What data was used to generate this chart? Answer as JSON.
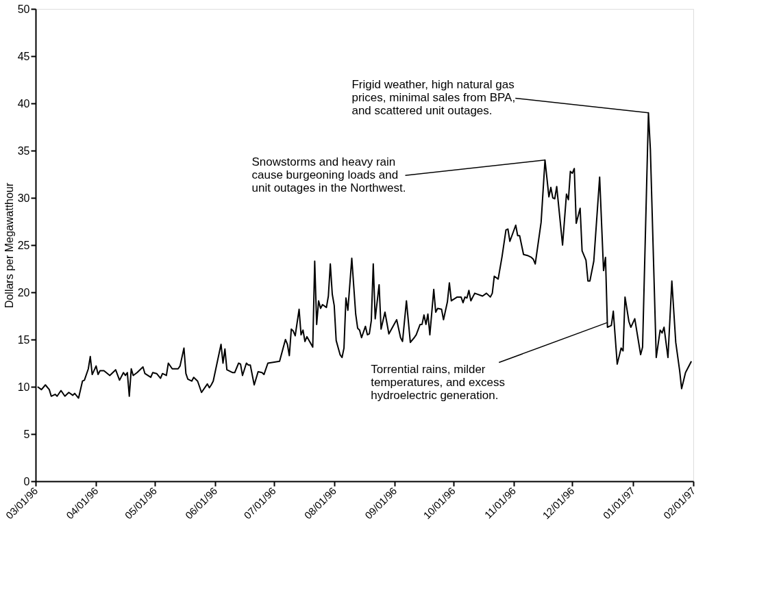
{
  "chart_data": {
    "type": "line",
    "ylabel": "Dollars per Megawatthour",
    "grid": false,
    "xlim": [
      "1996-03-01",
      "1997-02-01"
    ],
    "ylim": [
      0,
      50
    ],
    "yticks": [
      0,
      5,
      10,
      15,
      20,
      25,
      30,
      35,
      40,
      45,
      50
    ],
    "xticks": [
      {
        "value": "1996-03-01",
        "label": "03/01/96"
      },
      {
        "value": "1996-04-01",
        "label": "04/01/96"
      },
      {
        "value": "1996-05-01",
        "label": "05/01/96"
      },
      {
        "value": "1996-06-01",
        "label": "06/01/96"
      },
      {
        "value": "1996-07-01",
        "label": "07/01/96"
      },
      {
        "value": "1996-08-01",
        "label": "08/01/96"
      },
      {
        "value": "1996-09-01",
        "label": "09/01/96"
      },
      {
        "value": "1996-10-01",
        "label": "10/01/96"
      },
      {
        "value": "1996-11-01",
        "label": "11/01/96"
      },
      {
        "value": "1996-12-01",
        "label": "12/01/96"
      },
      {
        "value": "1997-01-01",
        "label": "01/01/97"
      },
      {
        "value": "1997-02-01",
        "label": "02/01/97"
      }
    ],
    "series": [
      {
        "color": "#000000",
        "x": [
          "1996-03-02",
          "1996-03-04",
          "1996-03-06",
          "1996-03-08",
          "1996-03-09",
          "1996-03-11",
          "1996-03-12",
          "1996-03-14",
          "1996-03-16",
          "1996-03-18",
          "1996-03-20",
          "1996-03-21",
          "1996-03-23",
          "1996-03-25",
          "1996-03-26",
          "1996-03-28",
          "1996-03-29",
          "1996-03-30",
          "1996-04-01",
          "1996-04-02",
          "1996-04-03",
          "1996-04-05",
          "1996-04-08",
          "1996-04-11",
          "1996-04-13",
          "1996-04-15",
          "1996-04-16",
          "1996-04-17",
          "1996-04-18",
          "1996-04-19",
          "1996-04-20",
          "1996-04-22",
          "1996-04-25",
          "1996-04-26",
          "1996-04-29",
          "1996-04-30",
          "1996-05-02",
          "1996-05-04",
          "1996-05-05",
          "1996-05-07",
          "1996-05-08",
          "1996-05-10",
          "1996-05-13",
          "1996-05-14",
          "1996-05-16",
          "1996-05-17",
          "1996-05-18",
          "1996-05-20",
          "1996-05-21",
          "1996-05-23",
          "1996-05-25",
          "1996-05-28",
          "1996-05-29",
          "1996-05-30",
          "1996-05-31",
          "1996-06-04",
          "1996-06-05",
          "1996-06-06",
          "1996-06-07",
          "1996-06-10",
          "1996-06-11",
          "1996-06-13",
          "1996-06-14",
          "1996-06-15",
          "1996-06-17",
          "1996-06-18",
          "1996-06-19",
          "1996-06-21",
          "1996-06-23",
          "1996-06-25",
          "1996-06-26",
          "1996-06-28",
          "1996-07-04",
          "1996-07-07",
          "1996-07-08",
          "1996-07-09",
          "1996-07-10",
          "1996-07-11",
          "1996-07-12",
          "1996-07-14",
          "1996-07-15",
          "1996-07-16",
          "1996-07-17",
          "1996-07-18",
          "1996-07-21",
          "1996-07-22",
          "1996-07-23",
          "1996-07-24",
          "1996-07-25",
          "1996-07-26",
          "1996-07-28",
          "1996-07-29",
          "1996-07-30",
          "1996-07-31",
          "1996-08-01",
          "1996-08-02",
          "1996-08-04",
          "1996-08-05",
          "1996-08-06",
          "1996-08-07",
          "1996-08-08",
          "1996-08-10",
          "1996-08-12",
          "1996-08-13",
          "1996-08-14",
          "1996-08-15",
          "1996-08-17",
          "1996-08-18",
          "1996-08-19",
          "1996-08-20",
          "1996-08-21",
          "1996-08-22",
          "1996-08-24",
          "1996-08-25",
          "1996-08-27",
          "1996-08-29",
          "1996-09-02",
          "1996-09-04",
          "1996-09-05",
          "1996-09-07",
          "1996-09-09",
          "1996-09-11",
          "1996-09-12",
          "1996-09-14",
          "1996-09-15",
          "1996-09-16",
          "1996-09-17",
          "1996-09-18",
          "1996-09-19",
          "1996-09-21",
          "1996-09-22",
          "1996-09-23",
          "1996-09-25",
          "1996-09-26",
          "1996-09-28",
          "1996-09-29",
          "1996-09-30",
          "1996-10-03",
          "1996-10-05",
          "1996-10-06",
          "1996-10-07",
          "1996-10-08",
          "1996-10-09",
          "1996-10-10",
          "1996-10-11",
          "1996-10-12",
          "1996-10-16",
          "1996-10-18",
          "1996-10-20",
          "1996-10-21",
          "1996-10-22",
          "1996-10-24",
          "1996-10-26",
          "1996-10-28",
          "1996-10-29",
          "1996-10-30",
          "1996-11-02",
          "1996-11-03",
          "1996-11-04",
          "1996-11-06",
          "1996-11-08",
          "1996-11-10",
          "1996-11-11",
          "1996-11-12",
          "1996-11-15",
          "1996-11-17",
          "1996-11-19",
          "1996-11-20",
          "1996-11-21",
          "1996-11-22",
          "1996-11-23",
          "1996-11-26",
          "1996-11-28",
          "1996-11-29",
          "1996-11-30",
          "1996-12-01",
          "1996-12-02",
          "1996-12-03",
          "1996-12-05",
          "1996-12-06",
          "1996-12-08",
          "1996-12-09",
          "1996-12-10",
          "1996-12-12",
          "1996-12-15",
          "1996-12-17",
          "1996-12-18",
          "1996-12-19",
          "1996-12-21",
          "1996-12-22",
          "1996-12-24",
          "1996-12-26",
          "1996-12-27",
          "1996-12-28",
          "1996-12-30",
          "1996-12-31",
          "1997-01-02",
          "1997-01-05",
          "1997-01-06",
          "1997-01-09",
          "1997-01-10",
          "1997-01-13",
          "1997-01-15",
          "1997-01-16",
          "1997-01-17",
          "1997-01-19",
          "1997-01-21",
          "1997-01-23",
          "1997-01-24",
          "1997-01-25",
          "1997-01-26",
          "1997-01-28",
          "1997-01-31"
        ],
        "values": [
          10.0,
          9.7,
          10.2,
          9.7,
          9.0,
          9.2,
          9.0,
          9.6,
          9.0,
          9.4,
          9.1,
          9.3,
          8.8,
          10.6,
          10.7,
          11.9,
          13.2,
          11.3,
          12.2,
          11.3,
          11.7,
          11.7,
          11.2,
          11.8,
          10.7,
          11.5,
          11.2,
          11.5,
          9.0,
          11.9,
          11.2,
          11.5,
          12.1,
          11.4,
          11.0,
          11.5,
          11.4,
          10.9,
          11.4,
          11.2,
          12.5,
          11.9,
          11.9,
          12.2,
          14.1,
          11.4,
          10.8,
          10.6,
          11.0,
          10.6,
          9.4,
          10.3,
          9.9,
          10.2,
          10.6,
          14.5,
          12.5,
          14.0,
          11.8,
          11.5,
          11.5,
          12.5,
          12.4,
          11.2,
          12.5,
          12.3,
          12.3,
          10.2,
          11.6,
          11.5,
          11.3,
          12.5,
          12.7,
          15.0,
          14.5,
          13.3,
          16.1,
          15.9,
          15.4,
          18.2,
          15.5,
          16.0,
          14.8,
          15.3,
          14.2,
          23.3,
          16.6,
          19.1,
          18.3,
          18.7,
          18.4,
          19.6,
          23.0,
          19.8,
          18.6,
          14.9,
          13.4,
          13.1,
          14.1,
          19.4,
          18.1,
          23.6,
          17.7,
          16.2,
          16.0,
          15.2,
          16.4,
          15.5,
          15.6,
          17.0,
          23.0,
          17.2,
          20.8,
          16.1,
          17.9,
          15.6,
          17.1,
          15.2,
          14.8,
          19.1,
          14.7,
          15.2,
          15.5,
          16.6,
          16.6,
          17.6,
          16.6,
          17.7,
          15.5,
          20.3,
          17.9,
          18.3,
          18.2,
          17.1,
          19.0,
          21.0,
          19.1,
          19.5,
          19.5,
          18.9,
          19.5,
          19.4,
          20.2,
          19.1,
          19.5,
          19.9,
          19.6,
          19.9,
          19.5,
          19.9,
          21.7,
          21.4,
          23.8,
          26.6,
          26.7,
          25.4,
          27.1,
          26.0,
          26.0,
          24.0,
          23.9,
          23.7,
          23.5,
          23.0,
          27.4,
          34.0,
          30.1,
          31.1,
          30.0,
          29.9,
          31.2,
          25.0,
          30.4,
          29.8,
          32.8,
          32.6,
          33.1,
          27.3,
          28.9,
          24.4,
          23.4,
          21.2,
          21.2,
          23.3,
          32.2,
          22.3,
          23.7,
          16.3,
          16.5,
          18.0,
          12.4,
          14.1,
          13.8,
          19.5,
          16.9,
          16.3,
          17.2,
          13.4,
          14.2,
          39.0,
          35.1,
          13.1,
          16.0,
          15.7,
          16.3,
          13.1,
          21.2,
          14.7,
          13.2,
          11.7,
          9.8,
          11.5,
          12.7
        ]
      }
    ],
    "annotations": [
      {
        "text": "Frigid weather, high natural gas prices, minimal sales from BPA, and scattered unit outages.",
        "x": "1997-01-09",
        "y": 39.0
      },
      {
        "text": "Snowstorms and heavy rain cause burgeoning loads and unit outages in the Northwest.",
        "x": "1996-11-17",
        "y": 34.0
      },
      {
        "text": "Torrential rains, milder temperatures, and excess hydroelectric generation.",
        "x": "1996-12-19",
        "y": 16.8
      }
    ]
  }
}
